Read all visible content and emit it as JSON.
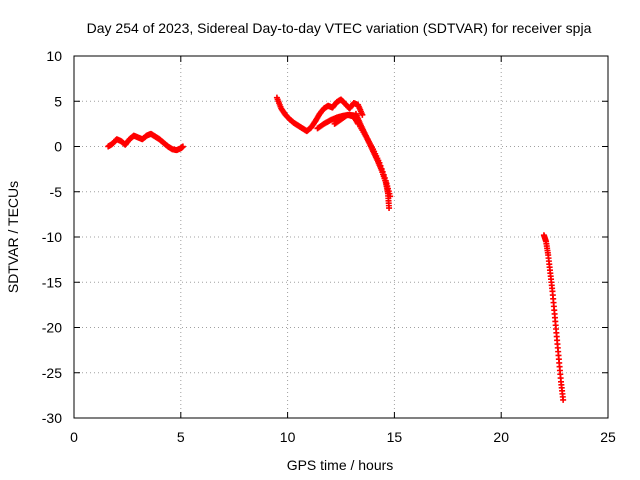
{
  "chart_data": {
    "type": "scatter",
    "title": "Day 254 of 2023, Sidereal Day-to-day VTEC variation (SDTVAR) for receiver spja",
    "xlabel": "GPS time / hours",
    "ylabel": "SDTVAR / TECUs",
    "xlim": [
      0,
      25
    ],
    "ylim": [
      -30,
      10
    ],
    "xticks": [
      0,
      5,
      10,
      15,
      20,
      25
    ],
    "yticks": [
      10,
      5,
      0,
      -5,
      -10,
      -15,
      -20,
      -25,
      -30
    ],
    "grid": true,
    "marker": "plus",
    "marker_color": "#ff0000",
    "series": [
      {
        "segments": [
          {
            "x": [
              1.6,
              1.8,
              2.0,
              2.2,
              2.4,
              2.6,
              2.8,
              3.0,
              3.2,
              3.4,
              3.6,
              3.8,
              4.0,
              4.2,
              4.4,
              4.6,
              4.8,
              5.0,
              5.1
            ],
            "y": [
              0.0,
              0.3,
              0.8,
              0.6,
              0.2,
              0.8,
              1.2,
              1.0,
              0.8,
              1.2,
              1.4,
              1.1,
              0.8,
              0.4,
              0.0,
              -0.3,
              -0.4,
              -0.2,
              0.0
            ]
          },
          {
            "x": [
              9.5,
              9.7,
              9.9,
              10.1,
              10.3,
              10.5,
              10.7,
              10.9,
              11.1,
              11.3,
              11.5,
              11.7,
              11.9,
              12.1,
              12.3,
              12.5,
              12.7,
              12.9,
              13.1,
              13.3,
              13.5
            ],
            "y": [
              5.4,
              4.2,
              3.5,
              3.0,
              2.6,
              2.3,
              2.0,
              1.7,
              2.1,
              2.8,
              3.6,
              4.2,
              4.5,
              4.3,
              4.9,
              5.2,
              4.7,
              4.2,
              4.8,
              4.6,
              3.5
            ]
          },
          {
            "x": [
              11.4,
              11.7,
              12.0,
              12.3,
              12.6,
              12.9,
              13.2
            ],
            "y": [
              2.0,
              2.5,
              2.9,
              3.2,
              3.4,
              3.5,
              3.4
            ]
          },
          {
            "x": [
              12.2,
              12.5,
              12.8,
              13.1,
              13.3
            ],
            "y": [
              2.5,
              3.0,
              3.5,
              3.3,
              2.5
            ]
          },
          {
            "x": [
              13.2,
              13.4,
              13.6,
              13.8,
              14.0,
              14.2,
              14.4,
              14.6,
              14.7,
              14.75
            ],
            "y": [
              3.6,
              2.5,
              1.5,
              0.5,
              -0.5,
              -1.5,
              -2.6,
              -4.0,
              -5.2,
              -6.8
            ]
          },
          {
            "x": [
              13.4,
              13.7,
              14.0,
              14.3,
              14.6,
              14.8
            ],
            "y": [
              2.2,
              1.0,
              -0.3,
              -1.8,
              -3.8,
              -5.5
            ]
          },
          {
            "x": [
              22.0,
              22.1,
              22.2,
              22.3,
              22.4,
              22.5,
              22.6,
              22.7,
              22.8,
              22.9
            ],
            "y": [
              -9.8,
              -10.5,
              -12.0,
              -14.0,
              -16.0,
              -18.5,
              -21.0,
              -23.5,
              -26.0,
              -28.0
            ]
          }
        ]
      }
    ]
  }
}
